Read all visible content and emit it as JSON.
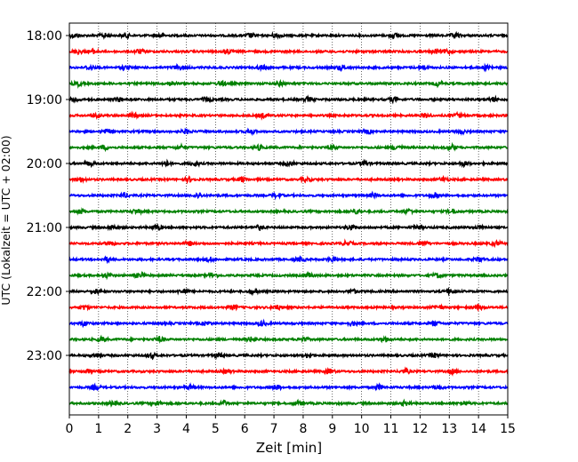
{
  "chart_data": {
    "type": "line",
    "xlabel": "Zeit  [min]",
    "ylabel": "UTC (Lokalzeit = UTC + 02:00)",
    "xlim": [
      0,
      15
    ],
    "x_ticks": [
      "0",
      "1",
      "2",
      "3",
      "4",
      "5",
      "6",
      "7",
      "8",
      "9",
      "10",
      "11",
      "12",
      "13",
      "14",
      "15"
    ],
    "y_ticks": [
      {
        "row": 0,
        "label": "18:00"
      },
      {
        "row": 4,
        "label": "19:00"
      },
      {
        "row": 8,
        "label": "20:00"
      },
      {
        "row": 12,
        "label": "21:00"
      },
      {
        "row": 16,
        "label": "22:00"
      },
      {
        "row": 20,
        "label": "23:00"
      }
    ],
    "grid": "x-dotted",
    "trace_colors": [
      "#000000",
      "#ff0000",
      "#0000ff",
      "#008000"
    ],
    "rows": [
      {
        "start": "18:00",
        "color": "#000000"
      },
      {
        "start": "18:15",
        "color": "#ff0000"
      },
      {
        "start": "18:30",
        "color": "#0000ff"
      },
      {
        "start": "18:45",
        "color": "#008000"
      },
      {
        "start": "19:00",
        "color": "#000000"
      },
      {
        "start": "19:15",
        "color": "#ff0000"
      },
      {
        "start": "19:30",
        "color": "#0000ff"
      },
      {
        "start": "19:45",
        "color": "#008000"
      },
      {
        "start": "20:00",
        "color": "#000000"
      },
      {
        "start": "20:15",
        "color": "#ff0000"
      },
      {
        "start": "20:30",
        "color": "#0000ff"
      },
      {
        "start": "20:45",
        "color": "#008000"
      },
      {
        "start": "21:00",
        "color": "#000000"
      },
      {
        "start": "21:15",
        "color": "#ff0000"
      },
      {
        "start": "21:30",
        "color": "#0000ff"
      },
      {
        "start": "21:45",
        "color": "#008000"
      },
      {
        "start": "22:00",
        "color": "#000000"
      },
      {
        "start": "22:15",
        "color": "#ff0000"
      },
      {
        "start": "22:30",
        "color": "#0000ff"
      },
      {
        "start": "22:45",
        "color": "#008000"
      },
      {
        "start": "23:00",
        "color": "#000000"
      },
      {
        "start": "23:15",
        "color": "#ff0000"
      },
      {
        "start": "23:30",
        "color": "#0000ff"
      },
      {
        "start": "23:45",
        "color": "#008000"
      }
    ],
    "events": [
      [
        0.2,
        1.2,
        1.9,
        3.1,
        6.2,
        7.1,
        11.1,
        13.2
      ],
      [
        0.3,
        0.8,
        2.4,
        5.4,
        12.5,
        12.9
      ],
      [
        0.7,
        1.9,
        3.7,
        6.6,
        9.3,
        12.1,
        14.3
      ],
      [
        0.3,
        3.5,
        5.2,
        7.2,
        12.6
      ],
      [
        0.2,
        1.7,
        4.7,
        8.2,
        11.1,
        14.5
      ],
      [
        0.9,
        2.2,
        6.6,
        12.2,
        13.3
      ],
      [
        1.3,
        4.0,
        6.2,
        10.2,
        13.4
      ],
      [
        1.2,
        3.8,
        6.5,
        9.0,
        11.2,
        13.1
      ],
      [
        0.7,
        3.3,
        4.3,
        7.5,
        10.1,
        13.5
      ],
      [
        0.4,
        4.1,
        5.9,
        8.1,
        12.8
      ],
      [
        1.9,
        4.4,
        7.1,
        10.4,
        12.5
      ],
      [
        0.4,
        2.3,
        9.8,
        11.6,
        13.1
      ],
      [
        1.5,
        3.0,
        6.5,
        9.6,
        11.9,
        14.1
      ],
      [
        1.4,
        4.1,
        9.5,
        12.1,
        14.6
      ],
      [
        1.3,
        4.8,
        7.9,
        9.0,
        14.0
      ],
      [
        1.3,
        2.4,
        4.9,
        8.2,
        12.6
      ],
      [
        0.9,
        3.9,
        6.3,
        9.7,
        13.0
      ],
      [
        0.5,
        5.6,
        7.1,
        12.6,
        14.0
      ],
      [
        0.5,
        4.7,
        6.6,
        9.7,
        12.5
      ],
      [
        1.1,
        3.1,
        6.2,
        8.0,
        10.8
      ],
      [
        0.9,
        2.8,
        5.1,
        8.2,
        12.5
      ],
      [
        0.6,
        5.4,
        8.9,
        11.5,
        13.1
      ],
      [
        0.9,
        4.1,
        7.1,
        10.6,
        12.6
      ],
      [
        1.5,
        3.0,
        5.3,
        7.8,
        11.5,
        13.5
      ]
    ]
  }
}
